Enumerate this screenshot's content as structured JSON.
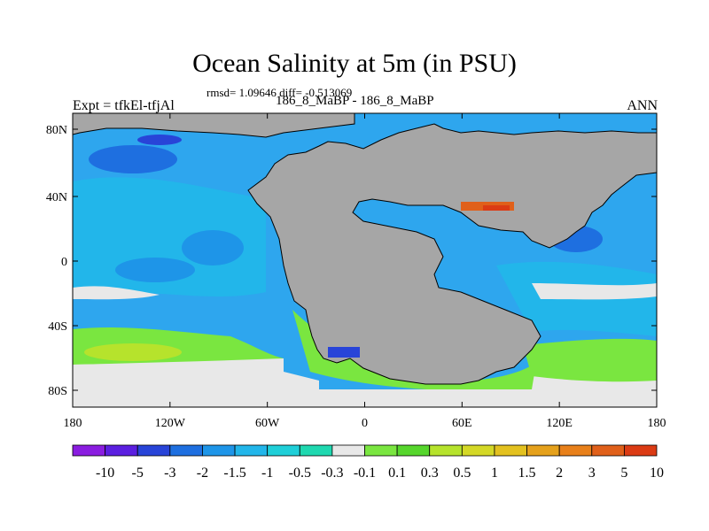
{
  "title": "Ocean Salinity at 5m (in PSU)",
  "stats": "rmsd= 1.09646 diff= -0.513069",
  "difference_experiment": "186_8_MaBP - 186_8_MaBP",
  "left_label": "Expt = tfkEl-tfjAl",
  "right_label": "ANN",
  "x_ticks": [
    "180",
    "120W",
    "60W",
    "0",
    "60E",
    "120E",
    "180"
  ],
  "y_ticks": [
    "80N",
    "40N",
    "0",
    "40S",
    "80S"
  ],
  "colorbar": {
    "colors": [
      "#8a1de0",
      "#5b1fe0",
      "#2844d8",
      "#1e6fe0",
      "#1e95e8",
      "#22b6ea",
      "#1fcfd8",
      "#1fd8b0",
      "#e8e8e8",
      "#7ae640",
      "#56d62c",
      "#b6e32c",
      "#d4d826",
      "#e3c11f",
      "#e5a11c",
      "#e8801a",
      "#e0601a",
      "#db3b14"
    ],
    "labels": [
      "-10",
      "-5",
      "-3",
      "-2",
      "-1.5",
      "-1",
      "-0.5",
      "-0.3",
      "-0.1",
      "0.1",
      "0.3",
      "0.5",
      "1",
      "1.5",
      "2",
      "3",
      "5",
      "10"
    ]
  },
  "colors": {
    "land": "#a6a6a6",
    "ocean": "#2ea6ee",
    "deep_ocean": "#1e6fe0",
    "near_zero": "#e8e8e8",
    "positive": "#7ae640"
  }
}
